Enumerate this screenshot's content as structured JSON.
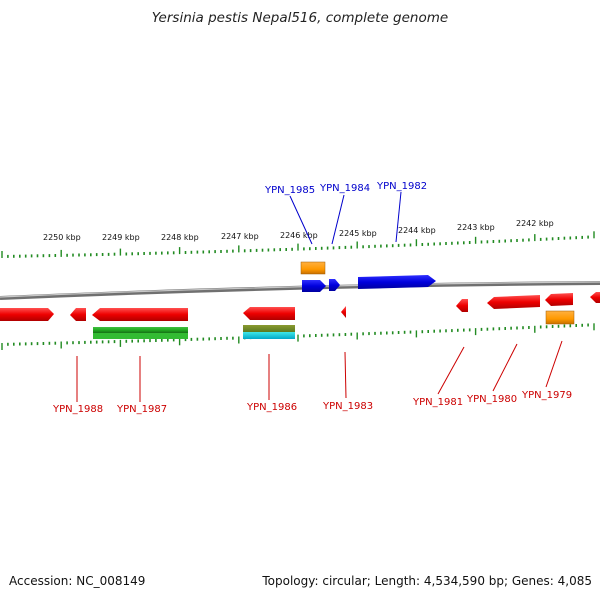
{
  "title": "Yersinia pestis Nepal516, complete genome",
  "footer": {
    "accession": "Accession: NC_008149",
    "summary": "Topology: circular; Length: 4,534,590 bp; Genes: 4,085"
  },
  "colors": {
    "forward_gene": "#0000dd",
    "reverse_gene": "#ee0000",
    "rrna": "#ff9900",
    "trna": "#22aa22",
    "misc": "#00cccc",
    "ticks": "#228b22",
    "backbone": "#888888"
  },
  "scale_labels": [
    "2250 kbp",
    "2249 kbp",
    "2248 kbp",
    "2247 kbp",
    "2246 kbp",
    "2245 kbp",
    "2244 kbp",
    "2243 kbp",
    "2242 kbp"
  ],
  "forward_genes": [
    "YPN_1985",
    "YPN_1984",
    "YPN_1982"
  ],
  "reverse_genes": [
    "YPN_1988",
    "YPN_1987",
    "YPN_1986",
    "YPN_1983",
    "YPN_1981",
    "YPN_1980",
    "YPN_1979"
  ]
}
